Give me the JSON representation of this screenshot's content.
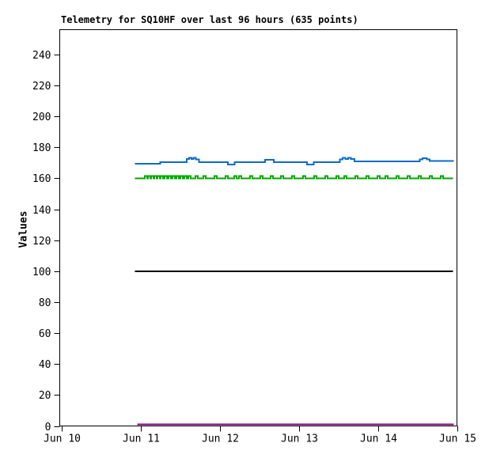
{
  "page": {
    "background": "#ffffff"
  },
  "chart_data": {
    "type": "line",
    "title": "Telemetry for SQ10HF over last 96 hours (635 points)",
    "device": "SQ10HF",
    "time_window_hours": 96,
    "points_count": 635,
    "xlabel": "",
    "ylabel": "Values",
    "grid": false,
    "legend_position": "none",
    "axis_color": "#000000",
    "xlim": [
      0,
      5
    ],
    "ylim": [
      0,
      256
    ],
    "x_ticks": [
      {
        "pos": 0,
        "label": "Jun 10"
      },
      {
        "pos": 1,
        "label": "Jun 11"
      },
      {
        "pos": 2,
        "label": "Jun 12"
      },
      {
        "pos": 3,
        "label": "Jun 13"
      },
      {
        "pos": 4,
        "label": "Jun 14"
      },
      {
        "pos": 5,
        "label": "Jun 15"
      }
    ],
    "y_ticks": [
      0,
      20,
      40,
      60,
      80,
      100,
      120,
      140,
      160,
      180,
      200,
      220,
      240
    ],
    "series": [
      {
        "name": "blue-upper-telemetry",
        "color": "#0d6bc8",
        "width": 2,
        "interpolation": "step",
        "points": [
          [
            0.93,
            169.5
          ],
          [
            1.25,
            170.3
          ],
          [
            1.585,
            172.4
          ],
          [
            1.615,
            173.1
          ],
          [
            1.645,
            172.4
          ],
          [
            1.672,
            173.1
          ],
          [
            1.7,
            172.1
          ],
          [
            1.74,
            170.3
          ],
          [
            2.105,
            169.0
          ],
          [
            2.19,
            170.3
          ],
          [
            2.575,
            171.9
          ],
          [
            2.685,
            170.3
          ],
          [
            3.105,
            169.0
          ],
          [
            3.19,
            170.3
          ],
          [
            3.52,
            172.1
          ],
          [
            3.555,
            173.1
          ],
          [
            3.59,
            172.4
          ],
          [
            3.625,
            173.1
          ],
          [
            3.66,
            172.4
          ],
          [
            3.705,
            170.8
          ],
          [
            4.53,
            172.1
          ],
          [
            4.565,
            172.9
          ],
          [
            4.62,
            172.1
          ],
          [
            4.655,
            171.3
          ],
          [
            4.96,
            171.3
          ]
        ]
      },
      {
        "name": "green-160-telemetry",
        "color": "#00a800",
        "width": 2,
        "interpolation": "step",
        "baseline": 160,
        "spike_value": 161.4,
        "spike_width": 0.03,
        "x_start": 0.93,
        "x_end": 4.95,
        "spikes": [
          1.07,
          1.11,
          1.15,
          1.19,
          1.23,
          1.27,
          1.32,
          1.37,
          1.42,
          1.47,
          1.52,
          1.57,
          1.62,
          1.71,
          1.81,
          1.95,
          2.09,
          2.2,
          2.26,
          2.4,
          2.53,
          2.66,
          2.79,
          2.93,
          3.07,
          3.21,
          3.35,
          3.49,
          3.59,
          3.73,
          3.87,
          4.01,
          4.11,
          4.25,
          4.39,
          4.53,
          4.67,
          4.81
        ]
      },
      {
        "name": "black-100-constant",
        "color": "#000000",
        "width": 2,
        "interpolation": "step",
        "points": [
          [
            0.93,
            100
          ],
          [
            4.95,
            100
          ]
        ]
      },
      {
        "name": "purple-near-zero",
        "color": "#7d007d",
        "width": 2,
        "interpolation": "step",
        "points": [
          [
            0.96,
            1
          ],
          [
            4.96,
            1
          ]
        ]
      }
    ]
  }
}
